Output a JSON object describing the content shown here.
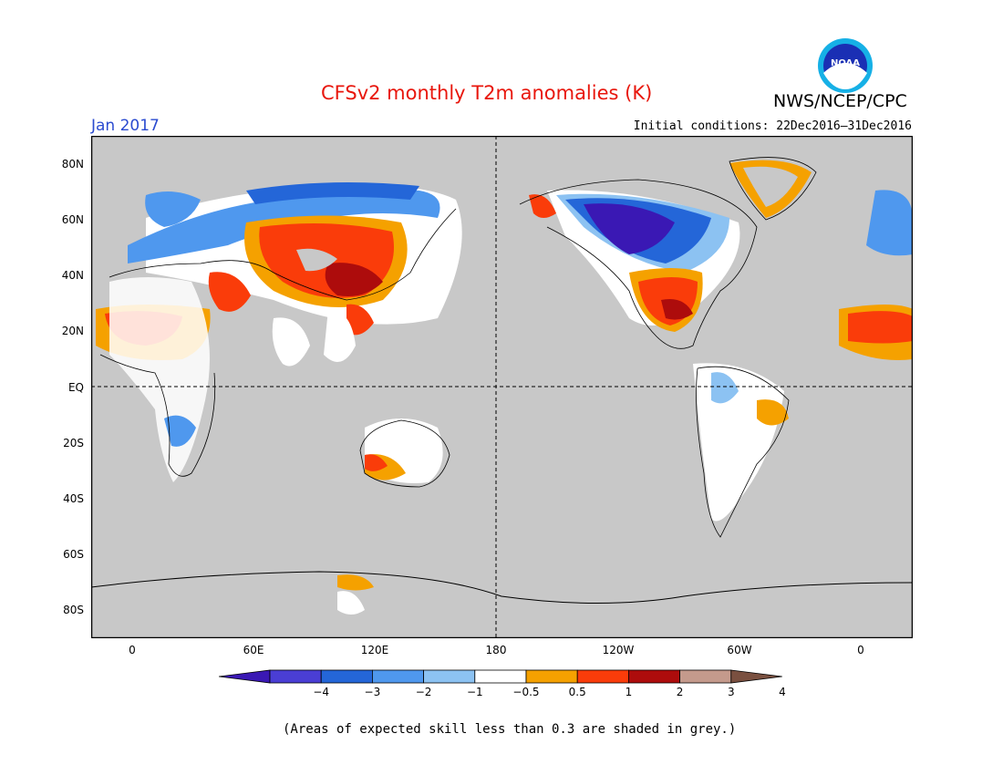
{
  "title": "CFSv2 monthly T2m anomalies (K)",
  "agency": "NWS/NCEP/CPC",
  "logo_text": "NOAA",
  "month": "Jan 2017",
  "initial_conditions": "Initial conditions: 22Dec2016–31Dec2016",
  "lat_labels": [
    "80N",
    "60N",
    "40N",
    "20N",
    "EQ",
    "20S",
    "40S",
    "60S",
    "80S"
  ],
  "lon_labels": [
    "0",
    "60E",
    "120E",
    "180",
    "120W",
    "60W",
    "0"
  ],
  "colorbar": {
    "labels": [
      "−4",
      "−3",
      "−2",
      "−1",
      "−0.5",
      "0.5",
      "1",
      "2",
      "3",
      "4"
    ],
    "colors": [
      "#3a18b4",
      "#4a3ed4",
      "#2466d8",
      "#4f98ee",
      "#8cc2f2",
      "#ffffff",
      "#f5a100",
      "#fa3c0a",
      "#ad0c0c",
      "#c49a8c",
      "#7a5040"
    ]
  },
  "colors": {
    "grey_mask": "#c8c8c8",
    "title": "#e8160c",
    "month": "#2b4bd0"
  },
  "note": "(Areas of expected skill less than 0.3 are shaded in grey.)"
}
